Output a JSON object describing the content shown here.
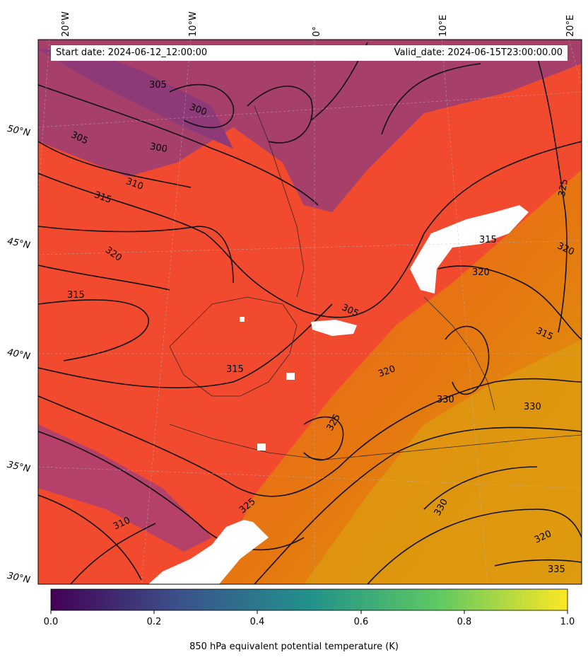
{
  "header": {
    "start_date": "Start date: 2024-06-12_12:00:00",
    "valid_date": "Valid_date: 2024-06-15T23:00:00.00"
  },
  "lon_labels": [
    "20°W",
    "10°W",
    "0°",
    "10°E",
    "20°E"
  ],
  "lat_labels": [
    "50°N",
    "45°N",
    "40°N",
    "35°N",
    "30°N"
  ],
  "contour_labels": [
    "305",
    "300",
    "300",
    "305",
    "310",
    "315",
    "320",
    "315",
    "305",
    "310",
    "315",
    "320",
    "320",
    "330",
    "330",
    "330",
    "335",
    "325",
    "320",
    "315",
    "320",
    "325",
    "315",
    "325"
  ],
  "colorbar": {
    "ticks": [
      "0.0",
      "0.2",
      "0.4",
      "0.6",
      "0.8",
      "1.0"
    ],
    "label": "850 hPa equivalent potential temperature (K)",
    "colormap": "viridis",
    "stops": [
      "#440154",
      "#3b528b",
      "#21918c",
      "#5ec962",
      "#fde725"
    ]
  },
  "map_colors": {
    "cold": "#a33e6d",
    "mid": "#f24a2e",
    "warm": "#e1870f",
    "hot": "#dca00d",
    "contour": "#111111",
    "missing": "#ffffff"
  }
}
